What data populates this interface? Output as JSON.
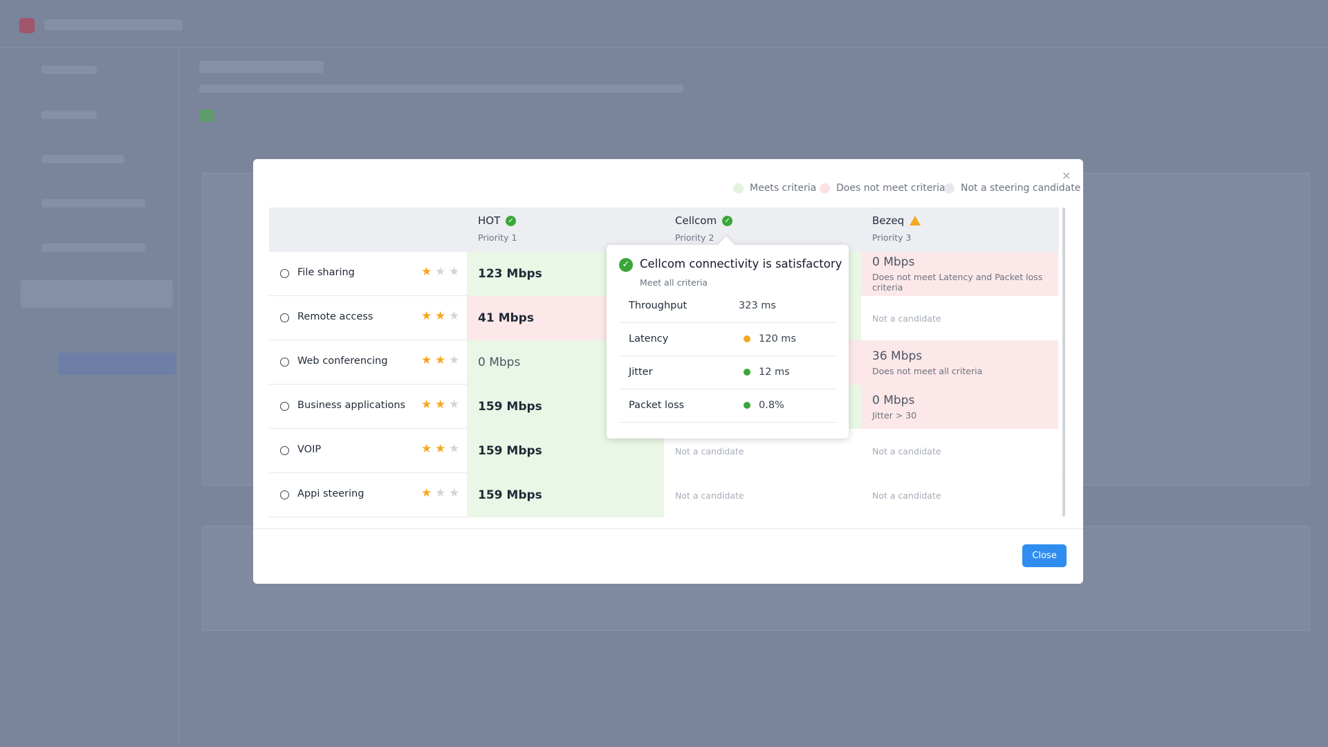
{
  "legend": [
    {
      "label": "Meets criteria",
      "status": "meets"
    },
    {
      "label": "Does not meet criteria",
      "status": "fails"
    },
    {
      "label": "Not a steering candidate",
      "status": "none"
    }
  ],
  "columns": [
    {
      "name": "HOT",
      "priority": "Priority 1",
      "status": "ok"
    },
    {
      "name": "Cellcom",
      "priority": "Priority 2",
      "status": "ok"
    },
    {
      "name": "Bezeq",
      "priority": "Priority 3",
      "status": "warn"
    }
  ],
  "rows": [
    {
      "name": "File sharing",
      "rating": 1,
      "cells": [
        {
          "value": "123 Mbps",
          "status": "meets",
          "strong": true
        },
        {
          "status": "meets"
        },
        {
          "value": "0 Mbps",
          "note": "Does not meet Latency and Packet loss criteria",
          "status": "fails"
        }
      ]
    },
    {
      "name": "Remote access",
      "rating": 2,
      "cells": [
        {
          "value": "41 Mbps",
          "status": "fails",
          "strong": true
        },
        {
          "status": "meets"
        },
        {
          "value": "Not a candidate",
          "status": "none"
        }
      ]
    },
    {
      "name": "Web conferencing",
      "rating": 2,
      "cells": [
        {
          "value": "0 Mbps",
          "status": "meets"
        },
        {
          "status": "fails"
        },
        {
          "value": "36 Mbps",
          "note": "Does not meet all criteria",
          "status": "fails"
        }
      ]
    },
    {
      "name": "Business applications",
      "rating": 2,
      "cells": [
        {
          "value": "159 Mbps",
          "status": "meets",
          "strong": true
        },
        {
          "status": "meets"
        },
        {
          "value": "0 Mbps",
          "note": "Jitter > 30",
          "status": "fails"
        }
      ]
    },
    {
      "name": "VOIP",
      "rating": 2,
      "cells": [
        {
          "value": "159 Mbps",
          "status": "meets",
          "strong": true
        },
        {
          "value": "Not a candidate",
          "status": "none"
        },
        {
          "value": "Not a candidate",
          "status": "none"
        }
      ]
    },
    {
      "name": "Appi steering",
      "rating": 1,
      "cells": [
        {
          "value": "159 Mbps",
          "status": "meets",
          "strong": true
        },
        {
          "value": "Not a candidate",
          "status": "none"
        },
        {
          "value": "Not a candidate",
          "status": "none"
        }
      ]
    }
  ],
  "tooltip": {
    "title": "Cellcom connectivity is satisfactory",
    "subtitle": "Meet all criteria",
    "metrics": [
      {
        "label": "Throughput",
        "value": "323 ms"
      },
      {
        "label": "Latency",
        "value": "120 ms",
        "status": "warn"
      },
      {
        "label": "Jitter",
        "value": "12 ms",
        "status": "ok"
      },
      {
        "label": "Packet loss",
        "value": "0.8%",
        "status": "ok"
      }
    ]
  },
  "close_button": "Close"
}
